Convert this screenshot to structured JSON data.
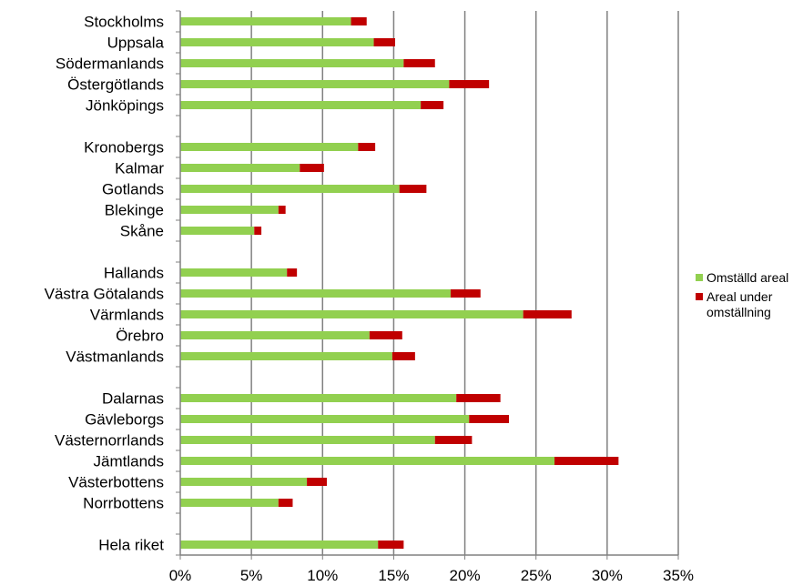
{
  "chart_data": {
    "type": "bar",
    "orientation": "horizontal",
    "stacked": true,
    "categories": [
      "Stockholms",
      "Uppsala",
      "Södermanlands",
      "Östergötlands",
      "Jönköpings",
      "",
      "Kronobergs",
      "Kalmar",
      "Gotlands",
      "Blekinge",
      "Skåne",
      "",
      "Hallands",
      "Västra Götalands",
      "Värmlands",
      "Örebro",
      "Västmanlands",
      "",
      "Dalarnas",
      "Gävleborgs",
      "Västernorrlands",
      "Jämtlands",
      "Västerbottens",
      "Norrbottens",
      "",
      "Hela riket"
    ],
    "series": [
      {
        "name": "Omställd areal",
        "color": "#92d050",
        "values": [
          12.0,
          13.6,
          15.7,
          18.9,
          16.9,
          null,
          12.5,
          8.4,
          15.4,
          6.9,
          5.2,
          null,
          7.5,
          19.0,
          24.1,
          13.3,
          14.9,
          null,
          19.4,
          20.3,
          17.9,
          26.3,
          8.9,
          6.9,
          null,
          13.9
        ]
      },
      {
        "name": "Areal under omställning",
        "color": "#c00000",
        "values": [
          1.1,
          1.5,
          2.2,
          2.8,
          1.6,
          null,
          1.2,
          1.7,
          1.9,
          0.5,
          0.5,
          null,
          0.7,
          2.1,
          3.4,
          2.3,
          1.6,
          null,
          3.1,
          2.8,
          2.6,
          4.5,
          1.4,
          1.0,
          null,
          1.8
        ]
      }
    ],
    "xlim": [
      0,
      35
    ],
    "xticks": [
      0,
      5,
      10,
      15,
      20,
      25,
      30,
      35
    ],
    "xtick_labels": [
      "0%",
      "5%",
      "10%",
      "15%",
      "20%",
      "25%",
      "30%",
      "35%"
    ],
    "grid": "vertical",
    "legend_position": "right",
    "legend_labels": [
      "Omställd areal",
      "Areal under omställning"
    ],
    "title": "",
    "xlabel": "",
    "ylabel": ""
  }
}
